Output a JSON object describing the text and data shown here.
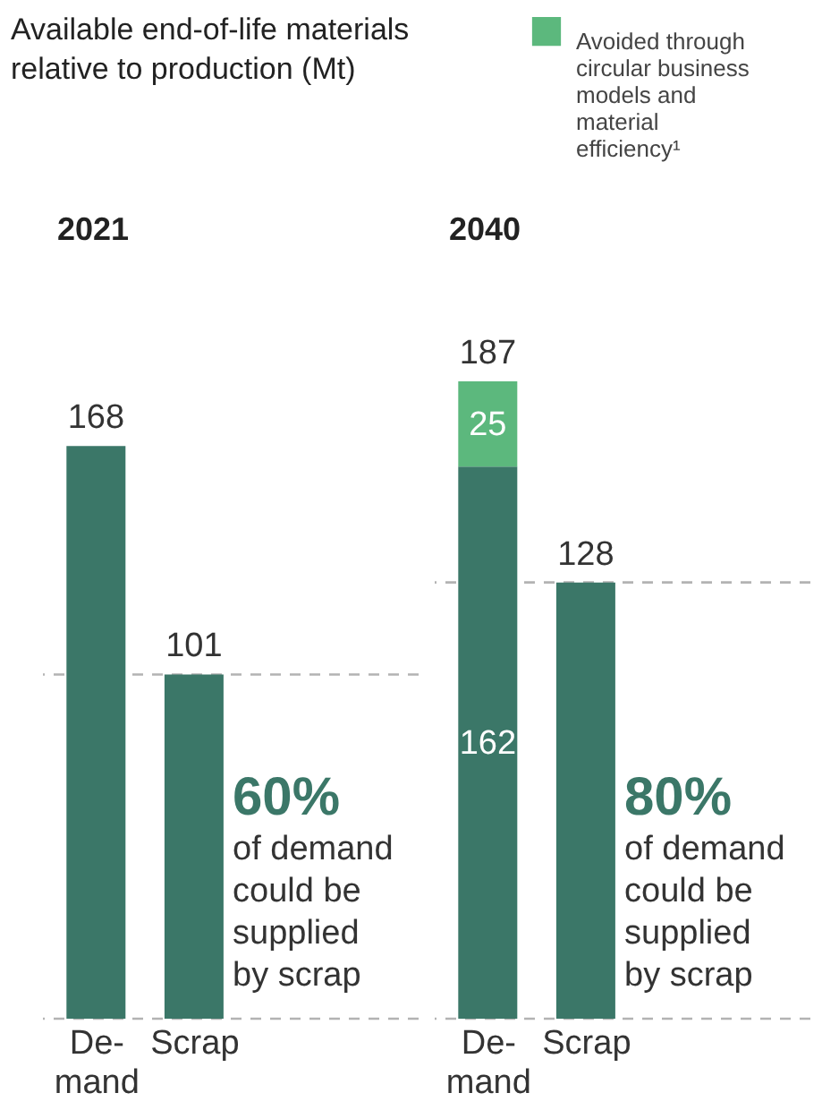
{
  "chart_data": [
    {
      "type": "bar",
      "title": "Available end-of-life materials relative to production (Mt)",
      "subtitle": "2021",
      "categories": [
        "De-\nmand",
        "Scrap"
      ],
      "series": [
        {
          "color": "#3b7768",
          "values": [
            168,
            101
          ]
        }
      ],
      "data_labels": true,
      "ref_lines": [
        {
          "axis": "y",
          "value": 101,
          "color": "#b3b3b3",
          "line_style": "dashed"
        },
        {
          "axis": "y",
          "value": 0,
          "color": "#b3b3b3",
          "line_style": "dashed"
        }
      ],
      "annotations": [
        "60%",
        "of demand could be supplied by scrap"
      ]
    },
    {
      "type": "bar",
      "subtitle": "2040",
      "categories": [
        "De-\nmand",
        "Scrap"
      ],
      "stacked": true,
      "legend": "top right",
      "series": [
        {
          "color": "#3b7768",
          "values": [
            162,
            128
          ],
          "value_labels": [
            "162",
            null
          ]
        },
        {
          "name": "Avoided through circular business models and material efficiency¹",
          "color": "#5cb87d",
          "values": [
            25,
            null
          ],
          "value_labels": [
            "25",
            null
          ]
        }
      ],
      "totals": [
        "187",
        "128"
      ],
      "ref_lines": [
        {
          "axis": "y",
          "value": 128,
          "color": "#b3b3b3",
          "line_style": "dashed"
        },
        {
          "axis": "y",
          "value": 0,
          "color": "#b3b3b3",
          "line_style": "dashed"
        }
      ],
      "annotations": [
        "80%",
        "of demand could be supplied by scrap"
      ]
    }
  ]
}
